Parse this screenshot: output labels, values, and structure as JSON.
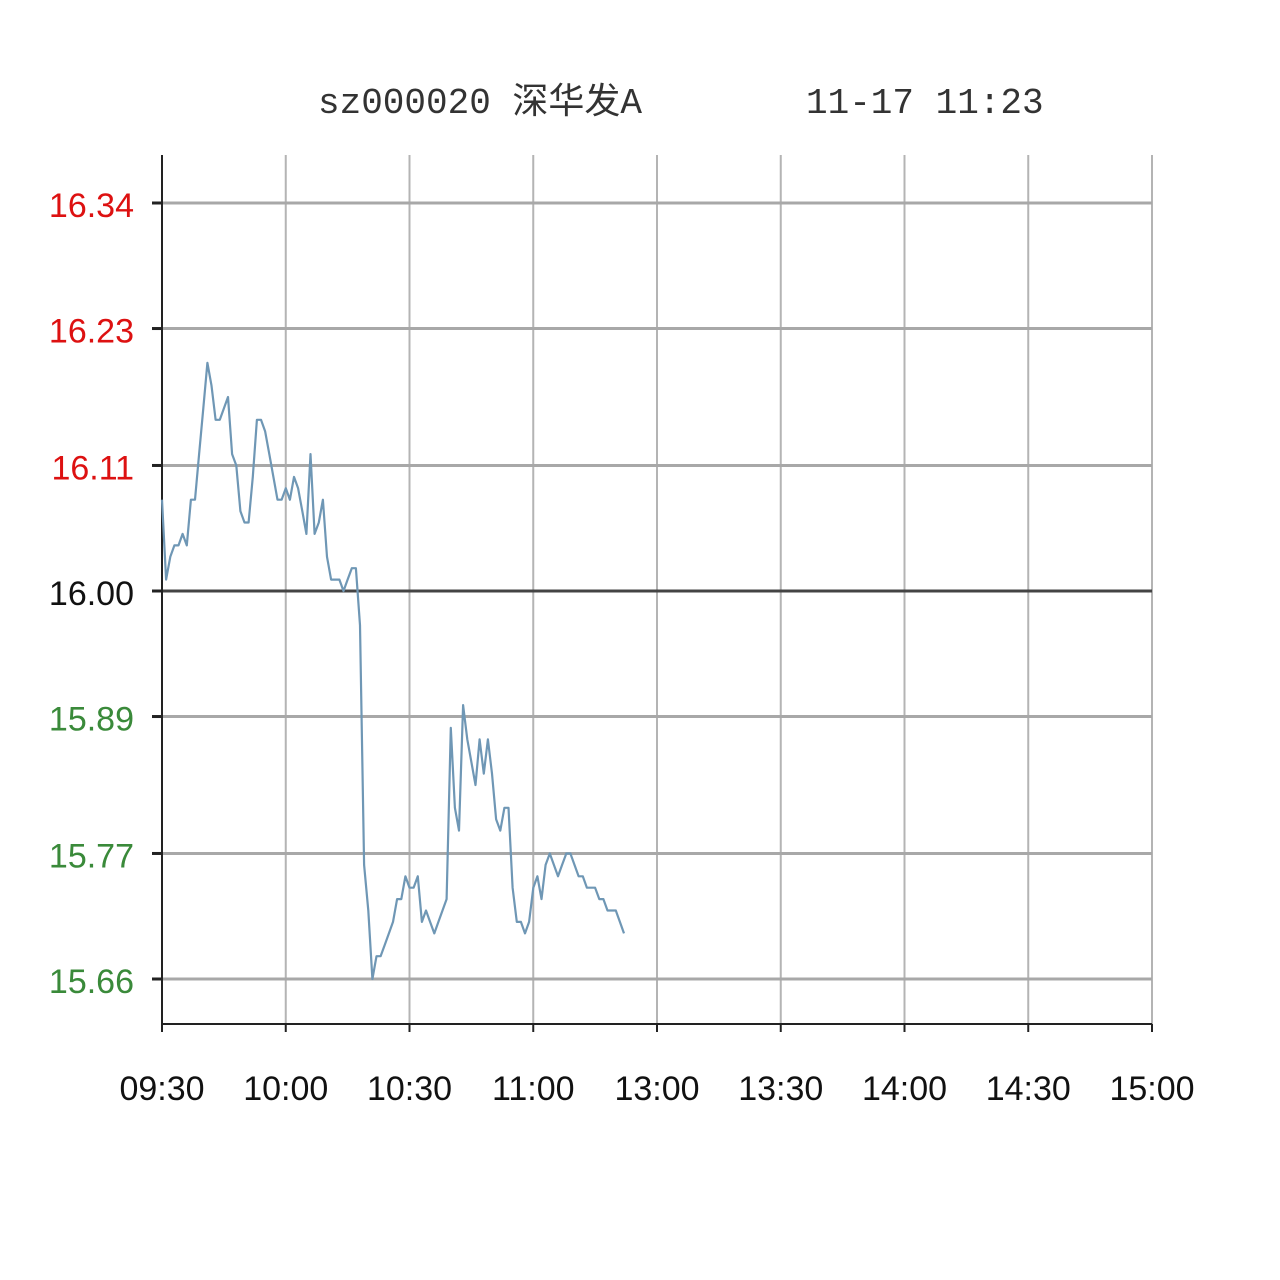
{
  "chart_data": {
    "type": "line",
    "title": "sz000020 深华发A",
    "timestamp": "11-17   11:23",
    "xlabel": "",
    "ylabel": "",
    "x_ticks": [
      "09:30",
      "10:00",
      "10:30",
      "11:00",
      "13:00",
      "13:30",
      "14:00",
      "14:30",
      "15:00"
    ],
    "y_ticks": [
      "16.34",
      "16.23",
      "16.11",
      "16.00",
      "15.89",
      "15.77",
      "15.66"
    ],
    "y_tick_values": [
      16.34,
      16.23,
      16.11,
      16.0,
      15.89,
      15.77,
      15.66
    ],
    "y_tick_colors": [
      "#dd1111",
      "#dd1111",
      "#dd1111",
      "#111111",
      "#3a8a3a",
      "#3a8a3a",
      "#3a8a3a"
    ],
    "ylim": [
      15.62,
      16.38
    ],
    "prev_close": 16.0,
    "x_range_minutes": [
      0,
      240
    ],
    "grid": true,
    "line_color": "#6f97b5",
    "series": [
      {
        "name": "price",
        "x": [
          0,
          1,
          2,
          3,
          4,
          5,
          6,
          7,
          8,
          9,
          10,
          11,
          12,
          13,
          14,
          15,
          16,
          17,
          18,
          19,
          20,
          21,
          22,
          23,
          24,
          25,
          26,
          27,
          28,
          29,
          30,
          31,
          32,
          33,
          34,
          35,
          36,
          37,
          38,
          39,
          40,
          41,
          42,
          43,
          44,
          45,
          46,
          47,
          48,
          49,
          50,
          51,
          52,
          53,
          54,
          55,
          56,
          57,
          58,
          59,
          60,
          61,
          62,
          63,
          64,
          65,
          66,
          67,
          68,
          69,
          70,
          71,
          72,
          73,
          74,
          75,
          76,
          77,
          78,
          79,
          80,
          81,
          82,
          83,
          84,
          85,
          86,
          87,
          88,
          89,
          90,
          91,
          92,
          93,
          94,
          95,
          96,
          97,
          98,
          99,
          100,
          101,
          102,
          103,
          104,
          105,
          106,
          107,
          108,
          109,
          110,
          111,
          112
        ],
        "values": [
          16.08,
          16.01,
          16.03,
          16.04,
          16.04,
          16.05,
          16.04,
          16.08,
          16.08,
          16.12,
          16.16,
          16.2,
          16.18,
          16.15,
          16.15,
          16.16,
          16.17,
          16.12,
          16.11,
          16.07,
          16.06,
          16.06,
          16.1,
          16.15,
          16.15,
          16.14,
          16.12,
          16.1,
          16.08,
          16.08,
          16.09,
          16.08,
          16.1,
          16.09,
          16.07,
          16.05,
          16.12,
          16.05,
          16.06,
          16.08,
          16.03,
          16.01,
          16.01,
          16.01,
          16.0,
          16.01,
          16.02,
          16.02,
          15.97,
          15.76,
          15.72,
          15.66,
          15.68,
          15.68,
          15.69,
          15.7,
          15.71,
          15.73,
          15.73,
          15.75,
          15.74,
          15.74,
          15.75,
          15.71,
          15.72,
          15.71,
          15.7,
          15.71,
          15.72,
          15.73,
          15.88,
          15.81,
          15.79,
          15.9,
          15.87,
          15.85,
          15.83,
          15.87,
          15.84,
          15.87,
          15.84,
          15.8,
          15.79,
          15.81,
          15.81,
          15.74,
          15.71,
          15.71,
          15.7,
          15.71,
          15.74,
          15.75,
          15.73,
          15.76,
          15.77,
          15.76,
          15.75,
          15.76,
          15.77,
          15.77,
          15.76,
          15.75,
          15.75,
          15.74,
          15.74,
          15.74,
          15.73,
          15.73,
          15.72,
          15.72,
          15.72,
          15.71,
          15.7
        ]
      }
    ]
  }
}
